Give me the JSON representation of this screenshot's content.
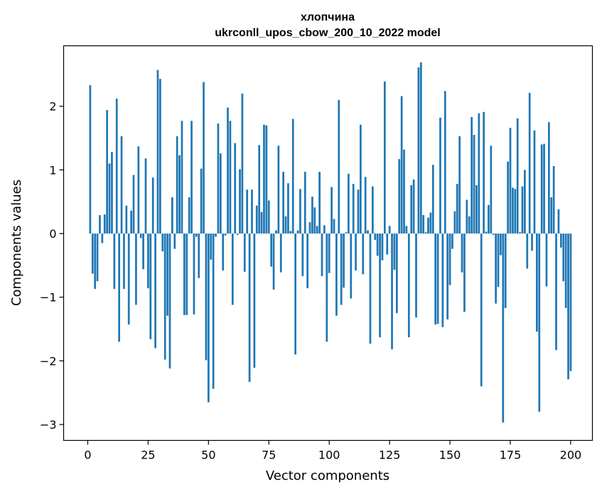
{
  "chart_data": {
    "type": "bar",
    "title_line1": "хлопчина",
    "title_line2": "ukrconll_upos_cbow_200_10_2022 model",
    "xlabel": "Vector components",
    "ylabel": "Components values",
    "xlim": [
      -10,
      209
    ],
    "ylim": [
      -3.25,
      2.95
    ],
    "xticks": [
      0,
      25,
      50,
      75,
      100,
      125,
      150,
      175,
      200
    ],
    "xtick_labels": [
      "0",
      "25",
      "50",
      "75",
      "100",
      "125",
      "150",
      "175",
      "200"
    ],
    "yticks": [
      -3,
      -2,
      -1,
      0,
      1,
      2
    ],
    "ytick_labels": [
      "−3",
      "−2",
      "−1",
      "0",
      "1",
      "2"
    ],
    "bar_color": "#1f77b4",
    "grid": false,
    "x_start": 1,
    "values": [
      2.33,
      -0.63,
      -0.87,
      -0.75,
      0.29,
      -0.15,
      0.3,
      1.94,
      1.1,
      1.28,
      -0.87,
      2.12,
      -1.7,
      1.53,
      -0.87,
      0.44,
      -1.43,
      0.36,
      0.92,
      -1.12,
      1.37,
      -0.07,
      -0.56,
      1.18,
      -0.86,
      -1.66,
      0.88,
      -1.8,
      2.57,
      2.43,
      -0.28,
      -1.98,
      -1.29,
      -2.12,
      0.57,
      -0.24,
      1.53,
      1.23,
      1.77,
      -1.28,
      -1.28,
      0.57,
      1.77,
      -1.27,
      -0.05,
      -0.7,
      1.02,
      2.38,
      -1.99,
      -2.65,
      -0.41,
      -2.44,
      -0.05,
      1.73,
      1.26,
      -0.58,
      -0.03,
      1.98,
      1.77,
      -1.12,
      1.42,
      -0.02,
      1.01,
      2.2,
      -0.6,
      0.69,
      -2.33,
      0.69,
      -2.11,
      0.44,
      1.39,
      0.34,
      1.71,
      1.7,
      0.52,
      -0.52,
      -0.88,
      0.05,
      1.38,
      -0.61,
      0.97,
      0.27,
      0.79,
      0.04,
      1.8,
      -1.9,
      0.05,
      0.7,
      -0.67,
      0.97,
      -0.86,
      0.18,
      0.58,
      0.41,
      0.12,
      0.97,
      -0.67,
      0.13,
      -1.7,
      -0.62,
      0.73,
      0.23,
      -1.29,
      2.1,
      -1.12,
      -0.85,
      0.02,
      0.94,
      -1.02,
      0.78,
      -0.58,
      0.69,
      1.71,
      -0.64,
      0.89,
      0.05,
      -1.73,
      0.74,
      -0.1,
      -0.35,
      -1.63,
      -0.42,
      2.39,
      -0.33,
      0.12,
      -1.82,
      -0.57,
      -1.25,
      1.17,
      2.16,
      1.32,
      0.12,
      -1.63,
      0.76,
      0.85,
      -1.32,
      2.61,
      2.69,
      0.29,
      0.02,
      0.25,
      0.33,
      1.08,
      -1.43,
      -1.42,
      1.82,
      -1.47,
      2.24,
      -1.35,
      -0.81,
      -0.24,
      0.35,
      0.78,
      1.53,
      -0.61,
      -1.23,
      0.53,
      0.27,
      1.83,
      1.55,
      0.76,
      1.89,
      -2.4,
      1.91,
      0.03,
      0.45,
      1.38,
      -0.02,
      -1.1,
      -0.84,
      -0.34,
      -2.97,
      -1.17,
      1.13,
      1.66,
      0.72,
      0.7,
      1.81,
      0.02,
      0.74,
      1.0,
      -0.55,
      2.21,
      -0.27,
      1.62,
      -1.54,
      -2.8,
      1.4,
      1.41,
      -0.83,
      1.75,
      0.57,
      1.06,
      -1.83,
      0.38,
      -0.22,
      -0.75,
      -1.17,
      -2.29,
      -2.16
    ]
  }
}
